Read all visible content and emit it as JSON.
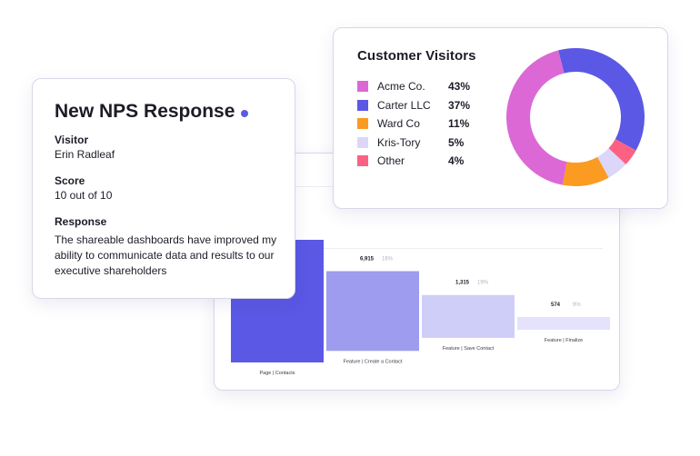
{
  "funnel": {
    "steps": [
      {
        "count": "",
        "pct": "",
        "label": "Page | Contacts",
        "value": 100,
        "color": "#5a58e4"
      },
      {
        "count": "6,915",
        "pct": "16%",
        "label": "Feature | Create a Contact",
        "value": 65,
        "color": "#9d9cee"
      },
      {
        "count": "1,315",
        "pct": "19%",
        "label": "Feature | Save Contact",
        "value": 35,
        "color": "#cfcef8"
      },
      {
        "count": "574",
        "pct": "9%",
        "label": "Feature | Finalize",
        "value": 9,
        "color": "#e4e3fb"
      }
    ]
  },
  "visitors": {
    "title": "Customer Visitors",
    "segments": [
      {
        "name": "Acme Co.",
        "pct": "43%",
        "value": 43,
        "color": "#dc68d6"
      },
      {
        "name": "Carter LLC",
        "pct": "37%",
        "value": 37,
        "color": "#5a58e4"
      },
      {
        "name": "Ward Co",
        "pct": "11%",
        "value": 11,
        "color": "#fb9b22"
      },
      {
        "name": "Kris-Tory",
        "pct": "5%",
        "value": 5,
        "color": "#dcd6f8"
      },
      {
        "name": "Other",
        "pct": "4%",
        "value": 4,
        "color": "#fc6184"
      }
    ]
  },
  "nps": {
    "title": "New NPS Response",
    "visitor_label": "Visitor",
    "visitor_value": "Erin Radleaf",
    "score_label": "Score",
    "score_value": "10 out of 10",
    "response_label": "Response",
    "response_value": "The shareable dashboards have improved my ability to communicate data and results to our executive shareholders"
  }
}
